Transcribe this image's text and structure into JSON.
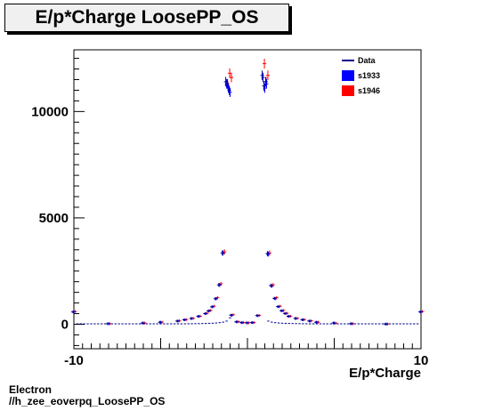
{
  "title": "E/p*Charge LoosePP_OS",
  "footer": {
    "line1": "Electron",
    "line2": "//h_zee_eoverpq_LoosePP_OS"
  },
  "colors": {
    "data": "#00008b",
    "s1933": "#0000ff",
    "s1946": "#ff0000",
    "axis": "#000000",
    "title_bg": "#f0f0f0"
  },
  "chart_data": {
    "type": "scatter",
    "title": "E/p*Charge LoosePP_OS",
    "xlabel": "E/p*Charge",
    "ylabel": "",
    "xlim": [
      -10,
      10
    ],
    "ylim": [
      -1150,
      12900
    ],
    "x_ticks": [
      -10,
      10
    ],
    "x_tick_labels": [
      "-10",
      "10"
    ],
    "y_ticks": [
      0,
      5000,
      10000
    ],
    "y_tick_labels": [
      "0",
      "5000",
      "10000"
    ],
    "grid": false,
    "legend_position": "top-right",
    "legend": [
      "Data",
      "s1933",
      "s1946"
    ],
    "series": [
      {
        "name": "s1946",
        "x": [
          -10,
          -8,
          -6,
          -5,
          -4,
          -3.6,
          -3.2,
          -2.8,
          -2.4,
          -2.2,
          -2.0,
          -1.8,
          -1.6,
          -1.4,
          -1.2,
          -1.1,
          -1.0,
          -0.9,
          -0.6,
          -0.3,
          0,
          0.3,
          0.6,
          0.9,
          1.0,
          1.1,
          1.2,
          1.4,
          1.6,
          1.8,
          2.0,
          2.2,
          2.4,
          2.8,
          3.2,
          3.6,
          4,
          5,
          6,
          8,
          10
        ],
        "y": [
          600,
          25,
          60,
          100,
          160,
          220,
          280,
          380,
          520,
          650,
          850,
          1250,
          1900,
          3400,
          11200,
          11800,
          11600,
          450,
          120,
          80,
          70,
          80,
          420,
          12250,
          11400,
          11700,
          3350,
          1850,
          1250,
          850,
          650,
          520,
          380,
          280,
          220,
          160,
          100,
          60,
          25,
          10,
          600
        ]
      },
      {
        "name": "s1933",
        "x": [
          -10,
          -8,
          -6,
          -5,
          -4,
          -3.6,
          -3.2,
          -2.8,
          -2.4,
          -2.2,
          -2.0,
          -1.8,
          -1.6,
          -1.4,
          -1.2,
          -1.1,
          -1.0,
          -0.9,
          -0.6,
          -0.3,
          0,
          0.3,
          0.6,
          0.9,
          1.0,
          1.1,
          1.2,
          1.4,
          1.6,
          1.8,
          2.0,
          2.2,
          2.4,
          2.8,
          3.2,
          3.6,
          4,
          5,
          6,
          8,
          10
        ],
        "y": [
          580,
          25,
          55,
          95,
          150,
          210,
          270,
          370,
          500,
          630,
          820,
          1200,
          1850,
          3350,
          11300,
          11100,
          10900,
          420,
          110,
          75,
          65,
          75,
          400,
          11600,
          11100,
          11300,
          3300,
          1800,
          1200,
          820,
          630,
          500,
          370,
          270,
          210,
          150,
          95,
          55,
          25,
          10,
          580
        ]
      },
      {
        "name": "Data",
        "x": [
          -10,
          -8,
          -6,
          -5,
          -4,
          -3.6,
          -3.2,
          -2.8,
          -2.4,
          -2.2,
          -2.0,
          -1.8,
          -1.6,
          -1.4,
          -1.2,
          -1.1,
          -1.0,
          -0.9,
          -0.6,
          -0.3,
          0,
          0.3,
          0.6,
          0.9,
          1.0,
          1.1,
          1.2,
          1.4,
          1.6,
          1.8,
          2.0,
          2.2,
          2.4,
          2.8,
          3.2,
          3.6,
          4,
          5,
          6,
          8,
          10
        ],
        "y": [
          580,
          25,
          55,
          95,
          150,
          210,
          270,
          370,
          500,
          630,
          820,
          1200,
          1850,
          3350,
          11400,
          11300,
          11000,
          430,
          115,
          78,
          68,
          78,
          410,
          11700,
          11200,
          11400,
          3320,
          1820,
          1220,
          830,
          640,
          510,
          375,
          275,
          215,
          155,
          97,
          57,
          25,
          10,
          580
        ]
      }
    ]
  }
}
